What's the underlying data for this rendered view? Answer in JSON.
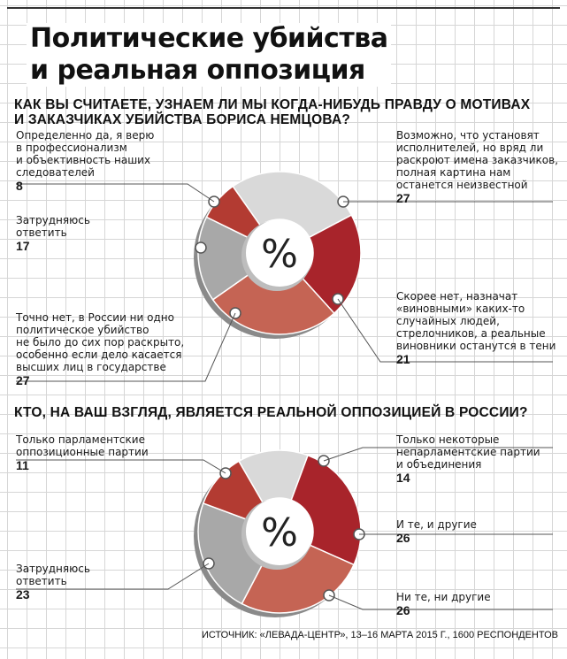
{
  "title": {
    "line1": "Политические убийства",
    "line2": "и реальная оппозиция"
  },
  "source": "ИСТОЧНИК: «ЛЕВАДА-ЦЕНТР», 13–16 МАРТА 2015 Г., 1600 РЕСПОНДЕНТОВ",
  "percent_sign": "%",
  "colors": {
    "light_gray": "#d9d9d9",
    "dark_red": "#a8242b",
    "salmon": "#c56454",
    "mid_gray": "#a8a8a8",
    "red": "#b33b32"
  },
  "chart_data": [
    {
      "type": "pie",
      "title": "КАК ВЫ СЧИТАЕТЕ, УЗНАЕМ ЛИ МЫ КОГДА-НИБУДЬ ПРАВДУ О МОТИВАХ И ЗАКАЗЧИКАХ УБИЙСТВА БОРИСА НЕМЦОВА?",
      "title_lines": [
        "КАК ВЫ СЧИТАЕТЕ, УЗНАЕМ ЛИ МЫ КОГДА-НИБУДЬ ПРАВДУ О МОТИВАХ",
        "И ЗАКАЗЧИКАХ УБИЙСТВА БОРИСА НЕМЦОВА?"
      ],
      "unit": "%",
      "slices": [
        {
          "label_lines": [
            "Возможно, что установят",
            "исполнителей, но вряд ли",
            "раскроют имена заказчиков,",
            "полная картина нам",
            "останется неизвестной"
          ],
          "value": 27,
          "color": "#d9d9d9"
        },
        {
          "label_lines": [
            "Скорее нет, назначат",
            "«виновными» каких-то",
            "случайных людей,",
            "стрелочников, а реальные",
            "виновники останутся в тени"
          ],
          "value": 21,
          "color": "#a8242b"
        },
        {
          "label_lines": [
            "Точно нет, в России ни одно",
            "политическое убийство",
            "не было до сих пор раскрыто,",
            "особенно если дело касается",
            "высших лиц в государстве"
          ],
          "value": 27,
          "color": "#c56454"
        },
        {
          "label_lines": [
            "Затрудняюсь",
            "ответить"
          ],
          "value": 17,
          "color": "#a8a8a8"
        },
        {
          "label_lines": [
            "Определенно да, я верю",
            "в профессионализм",
            "и объективность наших",
            "следователей"
          ],
          "value": 8,
          "color": "#b33b32"
        }
      ]
    },
    {
      "type": "pie",
      "title": "КТО, НА ВАШ ВЗГЛЯД, ЯВЛЯЕТСЯ РЕАЛЬНОЙ ОППОЗИЦИЕЙ В РОССИИ?",
      "title_lines": [
        "КТО, НА ВАШ ВЗГЛЯД, ЯВЛЯЕТСЯ РЕАЛЬНОЙ ОППОЗИЦИЕЙ В РОССИИ?"
      ],
      "unit": "%",
      "slices": [
        {
          "label_lines": [
            "Только некоторые",
            "непарламентские партии",
            "и объединения"
          ],
          "value": 14,
          "color": "#d9d9d9"
        },
        {
          "label_lines": [
            "И те, и другие"
          ],
          "value": 26,
          "color": "#a8242b"
        },
        {
          "label_lines": [
            "Ни те, ни другие"
          ],
          "value": 26,
          "color": "#c56454"
        },
        {
          "label_lines": [
            "Затрудняюсь",
            "ответить"
          ],
          "value": 23,
          "color": "#a8a8a8"
        },
        {
          "label_lines": [
            "Только парламентские",
            "оппозиционные партии"
          ],
          "value": 11,
          "color": "#b33b32"
        }
      ]
    }
  ]
}
